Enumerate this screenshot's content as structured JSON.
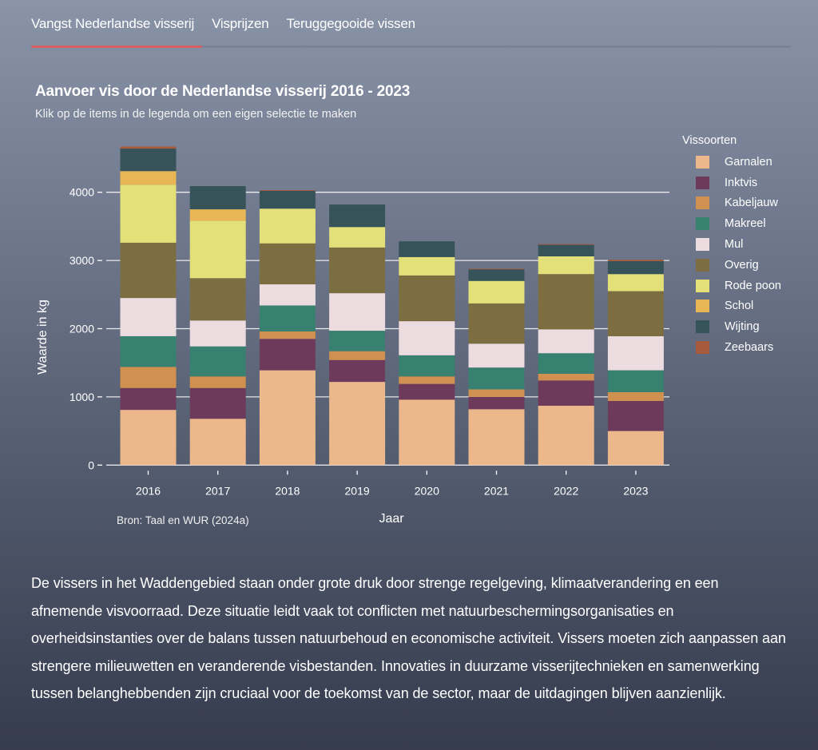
{
  "tabs": [
    {
      "label": "Vangst Nederlandse visserij",
      "active": true
    },
    {
      "label": "Visprijzen",
      "active": false
    },
    {
      "label": "Teruggegooide vissen",
      "active": false
    }
  ],
  "colors": {
    "active_tab_indicator": "#d7605e",
    "gridline": "#ffffff",
    "axis_text": "#ffffff"
  },
  "source": "Bron: Taal en WUR (2024a)",
  "body_text": "De vissers in het Waddengebied staan onder grote druk door strenge regelgeving, klimaatverandering en een afnemende visvoorraad. Deze situatie leidt vaak tot conflicten met natuurbeschermingsorganisaties en overheidsinstanties over de balans tussen natuurbehoud en economische activiteit. Vissers moeten zich aanpassen aan strengere milieuwetten en veranderende visbestanden. Innovaties in duurzame visserijtechnieken en samenwerking tussen belanghebbenden zijn cruciaal voor de toekomst van de sector, maar de uitdagingen blijven aanzienlijk.",
  "chart_data": {
    "type": "bar",
    "stacked": true,
    "title": "Aanvoer vis door de Nederlandse visserij 2016 - 2023",
    "subtitle": "Klik op de items in de legenda om een eigen selectie te maken",
    "xlabel": "Jaar",
    "ylabel": "Waarde in kg",
    "ylim": [
      0,
      4700
    ],
    "yticks": [
      0,
      1000,
      2000,
      3000,
      4000
    ],
    "grid": true,
    "legend_title": "Vissoorten",
    "legend_position": "right",
    "categories": [
      "2016",
      "2017",
      "2018",
      "2019",
      "2020",
      "2021",
      "2022",
      "2023"
    ],
    "series": [
      {
        "name": "Garnalen",
        "color": "#ecb78b",
        "values": [
          810,
          680,
          1390,
          1220,
          960,
          820,
          870,
          500
        ]
      },
      {
        "name": "Inktvis",
        "color": "#6e3a5c",
        "values": [
          320,
          450,
          460,
          320,
          230,
          180,
          370,
          440
        ]
      },
      {
        "name": "Kabeljauw",
        "color": "#cf9050",
        "values": [
          310,
          170,
          110,
          130,
          110,
          110,
          100,
          130
        ]
      },
      {
        "name": "Makreel",
        "color": "#388070",
        "values": [
          450,
          440,
          380,
          300,
          310,
          320,
          300,
          320
        ]
      },
      {
        "name": "Mul",
        "color": "#eddcdf",
        "values": [
          560,
          380,
          310,
          550,
          500,
          350,
          350,
          500
        ]
      },
      {
        "name": "Overig",
        "color": "#7c6e40",
        "values": [
          810,
          620,
          600,
          670,
          670,
          590,
          810,
          660
        ]
      },
      {
        "name": "Rode poon",
        "color": "#e3e07a",
        "values": [
          850,
          840,
          510,
          300,
          270,
          330,
          260,
          250
        ]
      },
      {
        "name": "Schol",
        "color": "#e8b654",
        "values": [
          200,
          170,
          0,
          0,
          0,
          0,
          0,
          0
        ]
      },
      {
        "name": "Wijting",
        "color": "#36535a",
        "values": [
          330,
          340,
          260,
          330,
          230,
          170,
          170,
          190
        ]
      },
      {
        "name": "Zeebaars",
        "color": "#a85a3c",
        "values": [
          30,
          0,
          10,
          0,
          0,
          10,
          10,
          20
        ]
      }
    ]
  }
}
